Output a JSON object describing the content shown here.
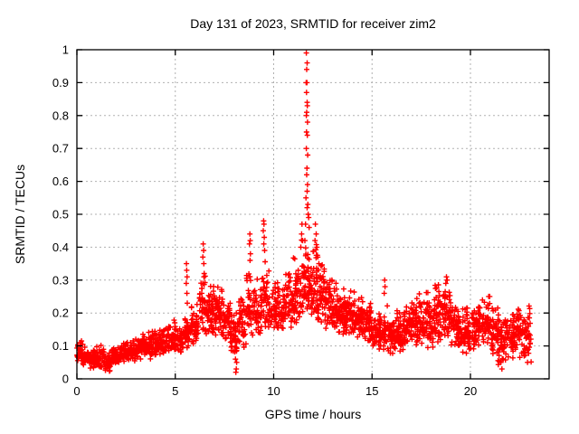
{
  "chart_data": {
    "type": "scatter",
    "title": "Day 131 of 2023, SRMTID for receiver zim2",
    "xlabel": "GPS time / hours",
    "ylabel": "SRMTID / TECUs",
    "xlim": [
      0,
      24
    ],
    "ylim": [
      0,
      1
    ],
    "xticks": [
      0,
      5,
      10,
      15,
      20
    ],
    "yticks": [
      0,
      0.1,
      0.2,
      0.3,
      0.4,
      0.5,
      0.6,
      0.7,
      0.8,
      0.9,
      1
    ],
    "grid": true,
    "grid_color": "#b0b0b0",
    "legend": "none",
    "marker": {
      "shape": "plus",
      "color": "#ff0000",
      "size": 7
    },
    "series_name": "SRMTID",
    "seed": 1312023,
    "cloud_bands": [
      [
        0.0,
        0.3,
        35,
        0.05,
        0.12
      ],
      [
        0.3,
        0.6,
        35,
        0.04,
        0.1
      ],
      [
        0.6,
        1.0,
        45,
        0.03,
        0.1
      ],
      [
        1.0,
        1.4,
        45,
        0.03,
        0.11
      ],
      [
        1.4,
        1.8,
        45,
        0.02,
        0.09
      ],
      [
        1.8,
        2.2,
        45,
        0.04,
        0.11
      ],
      [
        2.2,
        2.6,
        45,
        0.05,
        0.12
      ],
      [
        2.6,
        3.0,
        45,
        0.05,
        0.13
      ],
      [
        3.0,
        3.4,
        45,
        0.06,
        0.14
      ],
      [
        3.4,
        3.8,
        45,
        0.06,
        0.15
      ],
      [
        3.8,
        4.2,
        45,
        0.07,
        0.15
      ],
      [
        4.2,
        4.6,
        45,
        0.07,
        0.16
      ],
      [
        4.6,
        5.0,
        45,
        0.08,
        0.18
      ],
      [
        5.0,
        5.4,
        45,
        0.08,
        0.17
      ],
      [
        5.4,
        5.8,
        40,
        0.09,
        0.2
      ],
      [
        5.8,
        6.2,
        45,
        0.1,
        0.24
      ],
      [
        6.2,
        6.6,
        45,
        0.12,
        0.34
      ],
      [
        6.6,
        7.0,
        50,
        0.13,
        0.33
      ],
      [
        7.0,
        7.4,
        50,
        0.13,
        0.3
      ],
      [
        7.4,
        7.8,
        45,
        0.11,
        0.26
      ],
      [
        7.8,
        8.2,
        45,
        0.08,
        0.22
      ],
      [
        8.2,
        8.6,
        45,
        0.09,
        0.26
      ],
      [
        8.6,
        9.0,
        42,
        0.13,
        0.33
      ],
      [
        9.0,
        9.4,
        42,
        0.13,
        0.33
      ],
      [
        9.4,
        9.8,
        42,
        0.15,
        0.38
      ],
      [
        9.8,
        10.2,
        45,
        0.14,
        0.32
      ],
      [
        10.2,
        10.6,
        45,
        0.15,
        0.3
      ],
      [
        10.6,
        11.0,
        45,
        0.15,
        0.33
      ],
      [
        11.0,
        11.4,
        45,
        0.16,
        0.38
      ],
      [
        11.4,
        11.8,
        50,
        0.18,
        0.48
      ],
      [
        11.8,
        12.2,
        50,
        0.18,
        0.45
      ],
      [
        12.2,
        12.6,
        48,
        0.16,
        0.38
      ],
      [
        12.6,
        13.0,
        48,
        0.15,
        0.32
      ],
      [
        13.0,
        13.4,
        48,
        0.14,
        0.3
      ],
      [
        13.4,
        13.8,
        48,
        0.13,
        0.28
      ],
      [
        13.8,
        14.2,
        48,
        0.13,
        0.29
      ],
      [
        14.2,
        14.6,
        48,
        0.12,
        0.27
      ],
      [
        14.6,
        15.0,
        48,
        0.11,
        0.24
      ],
      [
        15.0,
        15.4,
        45,
        0.08,
        0.22
      ],
      [
        15.4,
        15.8,
        45,
        0.06,
        0.24
      ],
      [
        15.8,
        16.2,
        45,
        0.06,
        0.21
      ],
      [
        16.2,
        16.6,
        45,
        0.08,
        0.22
      ],
      [
        16.6,
        17.0,
        45,
        0.1,
        0.24
      ],
      [
        17.0,
        17.4,
        45,
        0.1,
        0.25
      ],
      [
        17.4,
        17.8,
        45,
        0.1,
        0.28
      ],
      [
        17.8,
        18.2,
        45,
        0.09,
        0.27
      ],
      [
        18.2,
        18.6,
        45,
        0.11,
        0.3
      ],
      [
        18.6,
        19.0,
        45,
        0.12,
        0.31
      ],
      [
        19.0,
        19.4,
        45,
        0.09,
        0.25
      ],
      [
        19.4,
        19.8,
        45,
        0.07,
        0.22
      ],
      [
        19.8,
        20.2,
        45,
        0.08,
        0.24
      ],
      [
        20.2,
        20.6,
        45,
        0.09,
        0.27
      ],
      [
        20.6,
        21.0,
        45,
        0.1,
        0.28
      ],
      [
        21.0,
        21.4,
        45,
        0.07,
        0.24
      ],
      [
        21.4,
        21.8,
        45,
        0.04,
        0.21
      ],
      [
        21.8,
        22.2,
        45,
        0.06,
        0.23
      ],
      [
        22.2,
        22.6,
        45,
        0.06,
        0.24
      ],
      [
        22.6,
        23.1,
        50,
        0.05,
        0.23
      ]
    ],
    "spike_points": [
      [
        11.66,
        0.99
      ],
      [
        11.7,
        0.96
      ],
      [
        11.68,
        0.94
      ],
      [
        11.65,
        0.9
      ],
      [
        11.69,
        0.9
      ],
      [
        11.67,
        0.87
      ],
      [
        11.7,
        0.84
      ],
      [
        11.71,
        0.83
      ],
      [
        11.68,
        0.81
      ],
      [
        11.66,
        0.8
      ],
      [
        11.72,
        0.78
      ],
      [
        11.67,
        0.75
      ],
      [
        11.71,
        0.74
      ],
      [
        11.66,
        0.7
      ],
      [
        11.73,
        0.68
      ],
      [
        11.69,
        0.64
      ],
      [
        11.68,
        0.62
      ],
      [
        11.72,
        0.59
      ],
      [
        11.7,
        0.57
      ],
      [
        11.64,
        0.55
      ],
      [
        11.74,
        0.53
      ],
      [
        11.7,
        0.52
      ],
      [
        11.75,
        0.5
      ],
      [
        11.78,
        0.49
      ],
      [
        11.62,
        0.47
      ],
      [
        11.8,
        0.46
      ],
      [
        11.44,
        0.47
      ],
      [
        11.42,
        0.44
      ],
      [
        11.47,
        0.42
      ],
      [
        11.38,
        0.4
      ],
      [
        12.12,
        0.47
      ],
      [
        12.16,
        0.44
      ],
      [
        12.1,
        0.42
      ],
      [
        12.2,
        0.4
      ],
      [
        12.24,
        0.37
      ],
      [
        12.3,
        0.35
      ],
      [
        5.57,
        0.35
      ],
      [
        5.58,
        0.33
      ],
      [
        5.6,
        0.31
      ],
      [
        5.56,
        0.29
      ],
      [
        5.59,
        0.26
      ],
      [
        5.61,
        0.23
      ],
      [
        6.42,
        0.41
      ],
      [
        6.44,
        0.39
      ],
      [
        6.4,
        0.37
      ],
      [
        6.45,
        0.35
      ],
      [
        6.47,
        0.32
      ],
      [
        6.41,
        0.29
      ],
      [
        8.79,
        0.44
      ],
      [
        8.81,
        0.42
      ],
      [
        8.77,
        0.41
      ],
      [
        8.82,
        0.38
      ],
      [
        8.8,
        0.36
      ],
      [
        9.49,
        0.48
      ],
      [
        9.51,
        0.47
      ],
      [
        9.47,
        0.45
      ],
      [
        9.52,
        0.43
      ],
      [
        9.5,
        0.41
      ],
      [
        9.54,
        0.39
      ],
      [
        15.64,
        0.3
      ],
      [
        15.66,
        0.28
      ],
      [
        15.62,
        0.26
      ],
      [
        18.78,
        0.31
      ],
      [
        18.82,
        0.3
      ],
      [
        18.75,
        0.29
      ],
      [
        8.08,
        0.02
      ],
      [
        8.1,
        0.03
      ],
      [
        8.12,
        0.05
      ],
      [
        8.06,
        0.06
      ],
      [
        21.6,
        0.03
      ],
      [
        21.55,
        0.05
      ],
      [
        22.9,
        0.05
      ]
    ]
  }
}
